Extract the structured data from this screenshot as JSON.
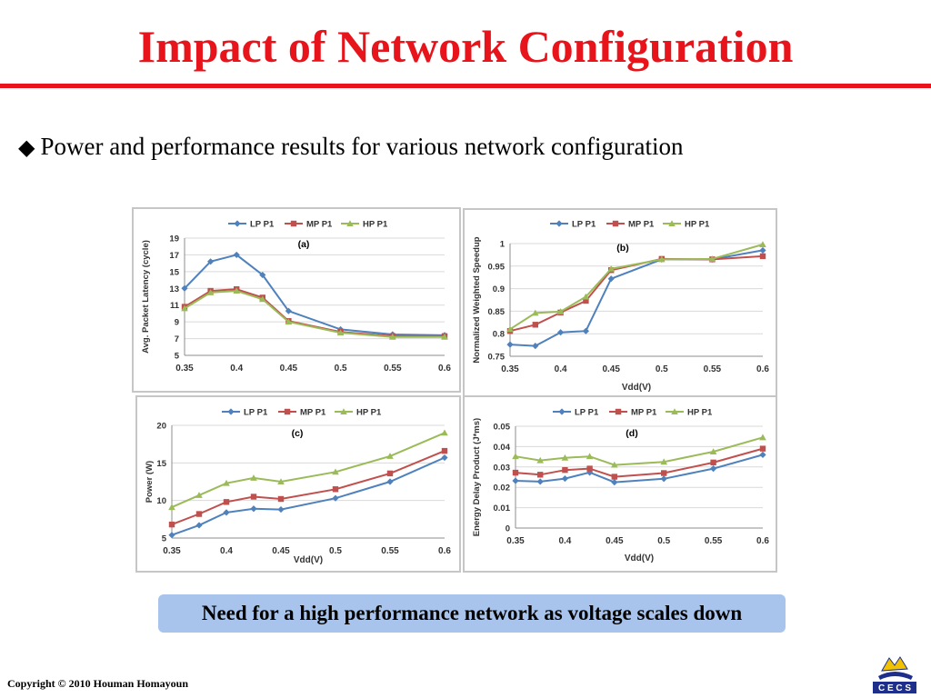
{
  "slide": {
    "title": "Impact of Network Configuration",
    "bullet": "Power and performance results for various network configuration",
    "bullet_icon": "diamond-bullet-icon",
    "callout": "Need for a high performance network as voltage scales down",
    "copyright": "Copyright © 2010 Houman Homayoun",
    "logo_text": "C E C S",
    "colors": {
      "title": "#e8141b",
      "callout_bg": "#a8c4ec"
    }
  },
  "chart_data": [
    {
      "type": "line",
      "panel_label": "(a)",
      "x": [
        0.35,
        0.375,
        0.4,
        0.425,
        0.45,
        0.5,
        0.55,
        0.6
      ],
      "xticks": [
        "0.35",
        "0.4",
        "0.45",
        "0.5",
        "0.55",
        "0.6"
      ],
      "yticks": [
        "5",
        "7",
        "9",
        "11",
        "13",
        "15",
        "17",
        "19"
      ],
      "ylim": [
        5,
        19
      ],
      "xlabel": "",
      "ylabel": "Avg. Packet Latency (cycle)",
      "legend_position": "top",
      "grid": true,
      "series": [
        {
          "name": "LP P1",
          "color": "#4f81bd",
          "marker": "diamond",
          "values": [
            13.0,
            16.2,
            17.0,
            14.6,
            10.3,
            8.1,
            7.5,
            7.4
          ]
        },
        {
          "name": "MP P1",
          "color": "#c0504d",
          "marker": "square",
          "values": [
            10.8,
            12.7,
            12.9,
            11.9,
            9.1,
            7.8,
            7.3,
            7.3
          ]
        },
        {
          "name": "HP P1",
          "color": "#9bbb59",
          "marker": "triangle",
          "values": [
            10.6,
            12.5,
            12.7,
            11.7,
            9.0,
            7.7,
            7.2,
            7.2
          ]
        }
      ]
    },
    {
      "type": "line",
      "panel_label": "(b)",
      "x": [
        0.35,
        0.375,
        0.4,
        0.425,
        0.45,
        0.5,
        0.55,
        0.6
      ],
      "xticks": [
        "0.35",
        "0.4",
        "0.45",
        "0.5",
        "0.55",
        "0.6"
      ],
      "yticks": [
        "0.75",
        "0.8",
        "0.85",
        "0.9",
        "0.95",
        "1"
      ],
      "ylim": [
        0.75,
        1.0
      ],
      "xlabel": "Vdd(V)",
      "ylabel": "Normalized Weighted Speedup",
      "legend_position": "top",
      "grid": true,
      "series": [
        {
          "name": "LP P1",
          "color": "#4f81bd",
          "marker": "diamond",
          "values": [
            0.776,
            0.773,
            0.803,
            0.806,
            0.922,
            0.965,
            0.965,
            0.985
          ]
        },
        {
          "name": "MP P1",
          "color": "#c0504d",
          "marker": "square",
          "values": [
            0.806,
            0.82,
            0.847,
            0.873,
            0.941,
            0.966,
            0.965,
            0.972
          ]
        },
        {
          "name": "HP P1",
          "color": "#9bbb59",
          "marker": "triangle",
          "values": [
            0.81,
            0.846,
            0.849,
            0.882,
            0.944,
            0.965,
            0.966,
            0.998
          ]
        }
      ]
    },
    {
      "type": "line",
      "panel_label": "(c)",
      "x": [
        0.35,
        0.375,
        0.4,
        0.425,
        0.45,
        0.5,
        0.55,
        0.6
      ],
      "xticks": [
        "0.35",
        "0.4",
        "0.45",
        "0.5",
        "0.55",
        "0.6"
      ],
      "yticks": [
        "5",
        "10",
        "15",
        "20"
      ],
      "ylim": [
        5,
        20
      ],
      "xlabel": "Vdd(V)",
      "ylabel": "Power (W)",
      "legend_position": "top",
      "grid": true,
      "series": [
        {
          "name": "LP P1",
          "color": "#4f81bd",
          "marker": "diamond",
          "values": [
            5.4,
            6.7,
            8.4,
            8.9,
            8.8,
            10.3,
            12.5,
            15.7
          ]
        },
        {
          "name": "MP P1",
          "color": "#c0504d",
          "marker": "square",
          "values": [
            6.8,
            8.2,
            9.8,
            10.5,
            10.2,
            11.5,
            13.6,
            16.6
          ]
        },
        {
          "name": "HP P1",
          "color": "#9bbb59",
          "marker": "triangle",
          "values": [
            9.1,
            10.7,
            12.3,
            13.0,
            12.5,
            13.8,
            15.9,
            19.0
          ]
        }
      ]
    },
    {
      "type": "line",
      "panel_label": "(d)",
      "x": [
        0.35,
        0.375,
        0.4,
        0.425,
        0.45,
        0.5,
        0.55,
        0.6
      ],
      "xticks": [
        "0.35",
        "0.4",
        "0.45",
        "0.5",
        "0.55",
        "0.6"
      ],
      "yticks": [
        "0",
        "0.01",
        "0.02",
        "0.03",
        "0.04",
        "0.05"
      ],
      "ylim": [
        0,
        0.05
      ],
      "xlabel": "Vdd(V)",
      "ylabel": "Energy Delay Product (J*ms)",
      "legend_position": "top",
      "grid": true,
      "series": [
        {
          "name": "LP P1",
          "color": "#4f81bd",
          "marker": "diamond",
          "values": [
            0.0232,
            0.0228,
            0.0243,
            0.0273,
            0.0225,
            0.0242,
            0.0292,
            0.036
          ]
        },
        {
          "name": "MP P1",
          "color": "#c0504d",
          "marker": "square",
          "values": [
            0.0272,
            0.0262,
            0.0285,
            0.0292,
            0.0252,
            0.027,
            0.0322,
            0.039
          ]
        },
        {
          "name": "HP P1",
          "color": "#9bbb59",
          "marker": "triangle",
          "values": [
            0.0352,
            0.0332,
            0.0345,
            0.0352,
            0.031,
            0.0325,
            0.0375,
            0.0445
          ]
        }
      ]
    }
  ]
}
